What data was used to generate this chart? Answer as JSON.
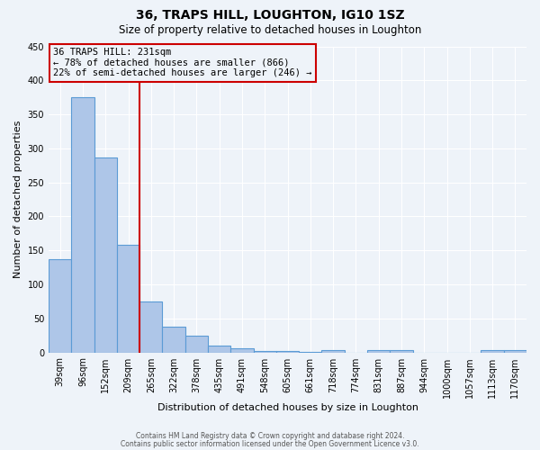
{
  "title": "36, TRAPS HILL, LOUGHTON, IG10 1SZ",
  "subtitle": "Size of property relative to detached houses in Loughton",
  "xlabel": "Distribution of detached houses by size in Loughton",
  "ylabel": "Number of detached properties",
  "all_labels": [
    "39sqm",
    "96sqm",
    "152sqm",
    "209sqm",
    "265sqm",
    "322sqm",
    "378sqm",
    "435sqm",
    "491sqm",
    "548sqm",
    "605sqm",
    "661sqm",
    "718sqm",
    "774sqm",
    "831sqm",
    "887sqm",
    "944sqm",
    "1000sqm",
    "1057sqm",
    "1113sqm",
    "1170sqm"
  ],
  "bar_heights": [
    137,
    375,
    287,
    158,
    75,
    38,
    25,
    10,
    6,
    2,
    2,
    1,
    4,
    0,
    4,
    3,
    0,
    0,
    0,
    4,
    3
  ],
  "bar_color": "#aec6e8",
  "bar_edge_color": "#5b9bd5",
  "vline_bin": 3,
  "vline_color": "#cc0000",
  "ylim": [
    0,
    450
  ],
  "annotation_title": "36 TRAPS HILL: 231sqm",
  "annotation_line1": "← 78% of detached houses are smaller (866)",
  "annotation_line2": "22% of semi-detached houses are larger (246) →",
  "annotation_box_color": "#cc0000",
  "footer_line1": "Contains HM Land Registry data © Crown copyright and database right 2024.",
  "footer_line2": "Contains public sector information licensed under the Open Government Licence v3.0.",
  "background_color": "#eef3f9",
  "grid_color": "#ffffff"
}
